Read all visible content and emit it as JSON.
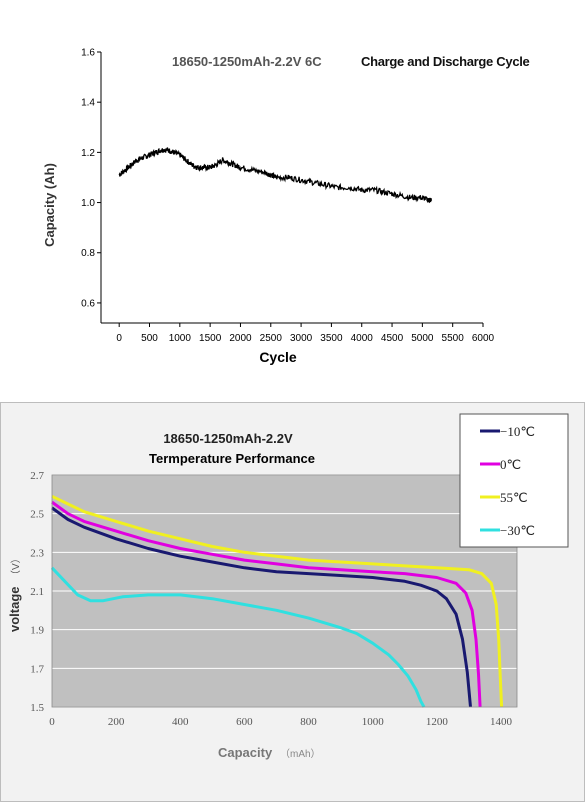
{
  "chart_data": [
    {
      "type": "line",
      "title": "18650-1250mAh-2.2V  6C",
      "subtitle": "Charge and Discharge Cycle",
      "xlabel": "Cycle",
      "ylabel": "Capacity (Ah)",
      "xlim": [
        -300,
        6000
      ],
      "ylim": [
        0.52,
        1.6
      ],
      "xticks": [
        "0",
        "500",
        "1000",
        "1500",
        "2000",
        "2500",
        "3000",
        "3500",
        "4000",
        "4500",
        "5000",
        "5500",
        "6000"
      ],
      "yticks": [
        "0.6",
        "0.8",
        "1.0",
        "1.2",
        "1.4",
        "1.6"
      ],
      "grid": false,
      "colors": {
        "line": "#000000"
      },
      "series": [
        {
          "x": [
            0,
            100,
            200,
            300,
            400,
            500,
            600,
            700,
            800,
            900,
            1000,
            1100,
            1200,
            1300,
            1400,
            1500,
            1600,
            1700,
            1800,
            1900,
            2000,
            2200,
            2400,
            2500,
            2600,
            2800,
            3000,
            3200,
            3400,
            3600,
            3800,
            4000,
            4200,
            4400,
            4600,
            4800,
            5000,
            5100,
            5150
          ],
          "y": [
            1.11,
            1.13,
            1.15,
            1.17,
            1.18,
            1.19,
            1.2,
            1.21,
            1.21,
            1.2,
            1.19,
            1.17,
            1.15,
            1.14,
            1.14,
            1.14,
            1.15,
            1.17,
            1.16,
            1.15,
            1.14,
            1.13,
            1.12,
            1.11,
            1.1,
            1.1,
            1.09,
            1.08,
            1.07,
            1.06,
            1.06,
            1.05,
            1.05,
            1.04,
            1.03,
            1.02,
            1.02,
            1.01,
            1.01
          ]
        }
      ]
    },
    {
      "type": "line",
      "title": "18650-1250mAh-2.2V",
      "subtitle": "Termperature Performance",
      "xlabel": "Capacity",
      "xlabel_unit": "（mAh）",
      "ylabel": "voltage",
      "ylabel_unit": "（V）",
      "xlim": [
        0,
        1450
      ],
      "ylim": [
        1.5,
        2.7
      ],
      "xticks": [
        "0",
        "200",
        "400",
        "600",
        "800",
        "1000",
        "1200",
        "1400"
      ],
      "yticks": [
        "2.7",
        "2.5",
        "2.3",
        "2.1",
        "1.9",
        "1.7",
        "1.5"
      ],
      "grid": true,
      "legend_position": "top-right",
      "colors": {
        "plot_bg": "#c0c0c0",
        "grid": "#ffffff",
        "panel_bg": "#f2f2f2"
      },
      "series": [
        {
          "name": "−10℃",
          "color": "#191970",
          "x": [
            0,
            50,
            100,
            200,
            300,
            400,
            500,
            600,
            700,
            800,
            900,
            1000,
            1100,
            1150,
            1200,
            1230,
            1260,
            1280,
            1295,
            1305
          ],
          "y": [
            2.53,
            2.47,
            2.43,
            2.37,
            2.32,
            2.28,
            2.25,
            2.22,
            2.2,
            2.19,
            2.18,
            2.17,
            2.15,
            2.13,
            2.1,
            2.06,
            1.98,
            1.85,
            1.68,
            1.5
          ]
        },
        {
          "name": "0℃",
          "color": "#e000e0",
          "x": [
            0,
            50,
            100,
            200,
            300,
            400,
            500,
            600,
            700,
            800,
            900,
            1000,
            1100,
            1200,
            1260,
            1290,
            1310,
            1322,
            1330,
            1335
          ],
          "y": [
            2.56,
            2.5,
            2.46,
            2.41,
            2.36,
            2.32,
            2.29,
            2.26,
            2.24,
            2.22,
            2.21,
            2.2,
            2.19,
            2.17,
            2.14,
            2.09,
            2.0,
            1.85,
            1.67,
            1.5
          ]
        },
        {
          "name": "55℃",
          "color": "#f0f020",
          "x": [
            0,
            50,
            100,
            200,
            300,
            400,
            500,
            600,
            700,
            800,
            900,
            1000,
            1100,
            1200,
            1300,
            1340,
            1370,
            1385,
            1393,
            1398,
            1402
          ],
          "y": [
            2.59,
            2.55,
            2.51,
            2.46,
            2.41,
            2.37,
            2.33,
            2.3,
            2.28,
            2.26,
            2.25,
            2.24,
            2.23,
            2.22,
            2.21,
            2.19,
            2.14,
            2.03,
            1.85,
            1.65,
            1.5
          ]
        },
        {
          "name": "−30℃",
          "color": "#30e0e0",
          "x": [
            0,
            40,
            80,
            120,
            160,
            220,
            300,
            400,
            500,
            600,
            700,
            800,
            900,
            950,
            1000,
            1050,
            1080,
            1110,
            1135,
            1150,
            1160
          ],
          "y": [
            2.22,
            2.15,
            2.08,
            2.05,
            2.05,
            2.07,
            2.08,
            2.08,
            2.06,
            2.03,
            2.0,
            1.96,
            1.91,
            1.88,
            1.83,
            1.77,
            1.72,
            1.66,
            1.59,
            1.53,
            1.5
          ]
        }
      ]
    }
  ]
}
